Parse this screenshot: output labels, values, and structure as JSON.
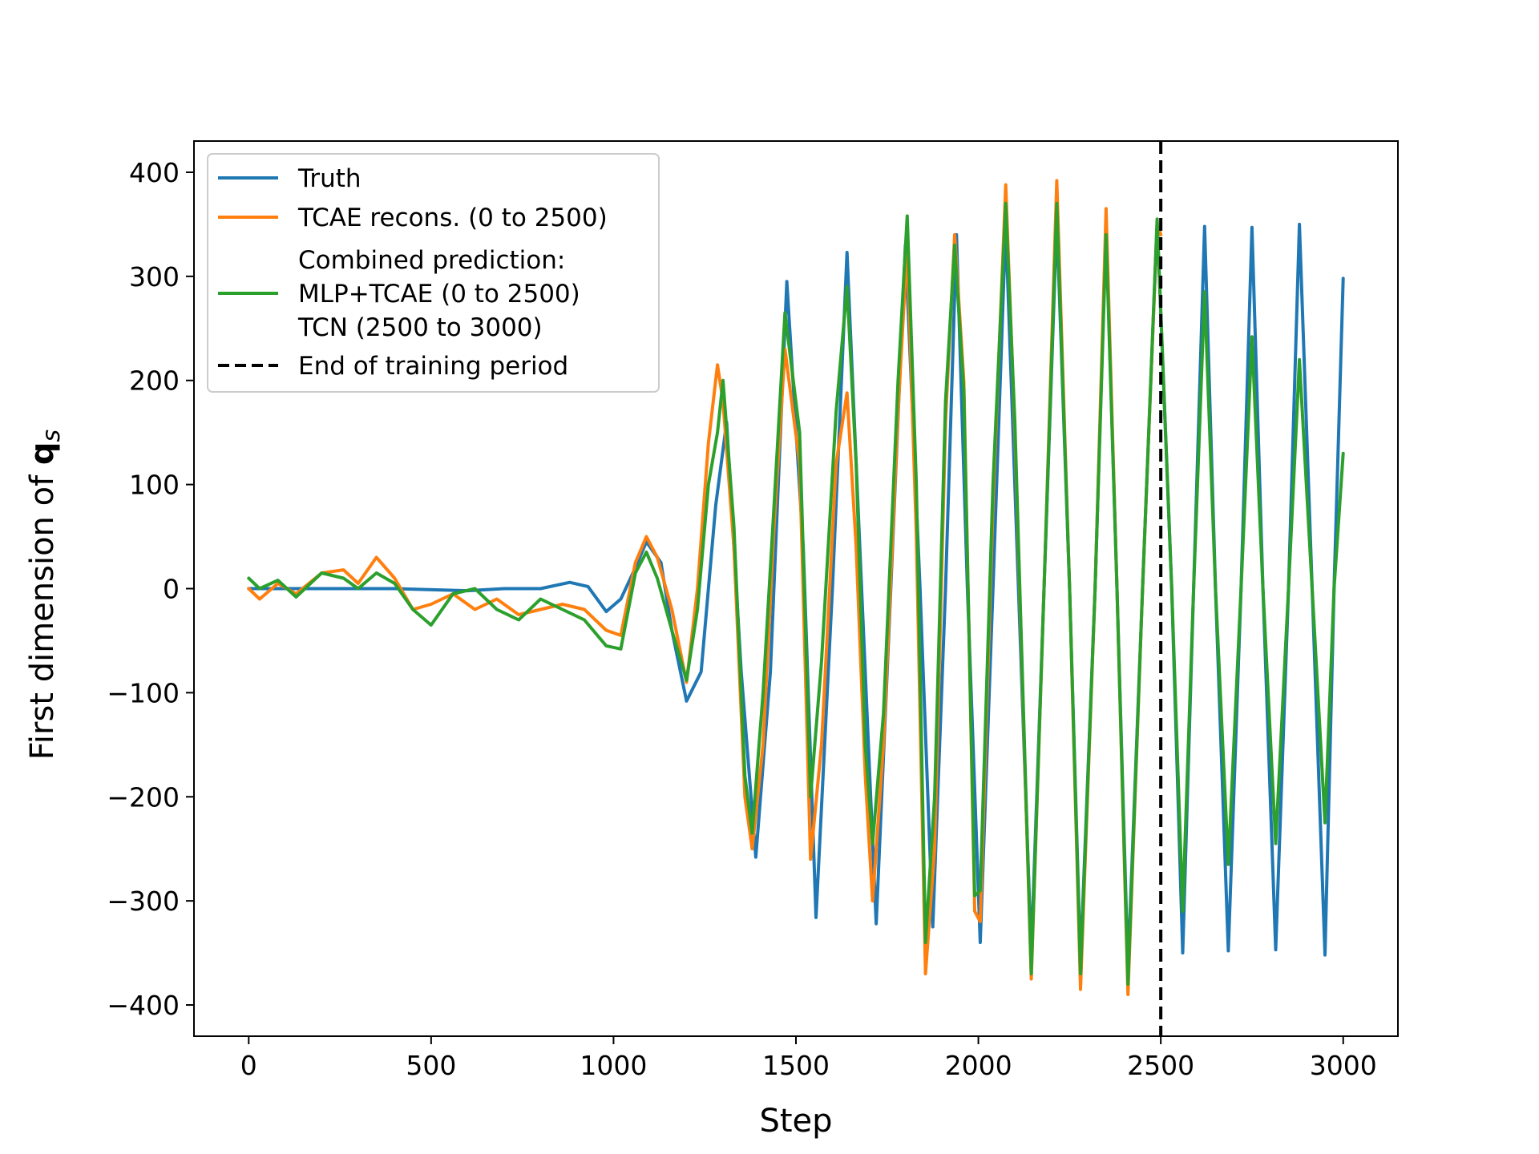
{
  "chart_data": {
    "type": "line",
    "title": "",
    "xlabel": "Step",
    "ylabel_prefix": "First dimension of ",
    "ylabel_symbol": "q",
    "ylabel_subscript": "s",
    "xlim": [
      -150,
      3150
    ],
    "ylim": [
      -430,
      430
    ],
    "xticks": [
      0,
      500,
      1000,
      1500,
      2000,
      2500,
      3000
    ],
    "xtick_labels": [
      "0",
      "500",
      "1000",
      "1500",
      "2000",
      "2500",
      "3000"
    ],
    "yticks": [
      -400,
      -300,
      -200,
      -100,
      0,
      100,
      200,
      300,
      400
    ],
    "ytick_labels": [
      "−400",
      "−300",
      "−200",
      "−100",
      "0",
      "100",
      "200",
      "300",
      "400"
    ],
    "vline": {
      "x": 2500,
      "label": "End of training period",
      "color": "#000000",
      "dashed": true
    },
    "legend": {
      "position": "upper-left",
      "entries": [
        {
          "key": "truth",
          "lines": [
            "Truth"
          ],
          "color": "#1f77b4"
        },
        {
          "key": "tcae",
          "lines": [
            "TCAE recons. (0 to 2500)"
          ],
          "color": "#ff7f0e"
        },
        {
          "key": "combined",
          "lines": [
            "Combined prediction:",
            "MLP+TCAE (0 to 2500)",
            "TCN (2500 to 3000)"
          ],
          "color": "#2ca02c"
        },
        {
          "key": "vline",
          "lines": [
            "End of training period"
          ],
          "color": "#000000",
          "dashed": true
        }
      ]
    },
    "series": [
      {
        "name": "Truth",
        "color": "#1f77b4",
        "points": [
          [
            0,
            0
          ],
          [
            200,
            0
          ],
          [
            400,
            0
          ],
          [
            600,
            -2
          ],
          [
            700,
            0
          ],
          [
            800,
            0
          ],
          [
            880,
            6
          ],
          [
            930,
            2
          ],
          [
            980,
            -22
          ],
          [
            1020,
            -10
          ],
          [
            1060,
            20
          ],
          [
            1090,
            45
          ],
          [
            1130,
            25
          ],
          [
            1160,
            -40
          ],
          [
            1200,
            -108
          ],
          [
            1240,
            -80
          ],
          [
            1280,
            80
          ],
          [
            1310,
            160
          ],
          [
            1350,
            -80
          ],
          [
            1390,
            -258
          ],
          [
            1430,
            -80
          ],
          [
            1475,
            295
          ],
          [
            1520,
            40
          ],
          [
            1555,
            -316
          ],
          [
            1600,
            0
          ],
          [
            1640,
            323
          ],
          [
            1680,
            0
          ],
          [
            1720,
            -322
          ],
          [
            1760,
            0
          ],
          [
            1800,
            330
          ],
          [
            1840,
            0
          ],
          [
            1875,
            -325
          ],
          [
            1910,
            0
          ],
          [
            1940,
            340
          ],
          [
            1970,
            0
          ],
          [
            2005,
            -340
          ],
          [
            2040,
            0
          ],
          [
            2075,
            350
          ],
          [
            2110,
            0
          ],
          [
            2145,
            -350
          ],
          [
            2180,
            0
          ],
          [
            2215,
            355
          ],
          [
            2250,
            0
          ],
          [
            2280,
            -360
          ],
          [
            2320,
            0
          ],
          [
            2350,
            350
          ],
          [
            2380,
            0
          ],
          [
            2410,
            -365
          ],
          [
            2450,
            0
          ],
          [
            2490,
            352
          ],
          [
            2530,
            0
          ],
          [
            2560,
            -350
          ],
          [
            2590,
            0
          ],
          [
            2620,
            348
          ],
          [
            2650,
            0
          ],
          [
            2685,
            -348
          ],
          [
            2720,
            0
          ],
          [
            2750,
            347
          ],
          [
            2780,
            0
          ],
          [
            2815,
            -347
          ],
          [
            2850,
            0
          ],
          [
            2880,
            350
          ],
          [
            2915,
            0
          ],
          [
            2950,
            -352
          ],
          [
            2975,
            0
          ],
          [
            3000,
            298
          ]
        ]
      },
      {
        "name": "TCAE recons. (0 to 2500)",
        "color": "#ff7f0e",
        "points": [
          [
            0,
            0
          ],
          [
            30,
            -10
          ],
          [
            80,
            5
          ],
          [
            130,
            -5
          ],
          [
            200,
            15
          ],
          [
            260,
            18
          ],
          [
            300,
            5
          ],
          [
            350,
            30
          ],
          [
            400,
            10
          ],
          [
            450,
            -20
          ],
          [
            500,
            -15
          ],
          [
            560,
            -5
          ],
          [
            620,
            -20
          ],
          [
            680,
            -10
          ],
          [
            740,
            -25
          ],
          [
            800,
            -20
          ],
          [
            860,
            -15
          ],
          [
            920,
            -20
          ],
          [
            980,
            -40
          ],
          [
            1020,
            -45
          ],
          [
            1060,
            25
          ],
          [
            1090,
            50
          ],
          [
            1120,
            30
          ],
          [
            1160,
            -20
          ],
          [
            1200,
            -90
          ],
          [
            1230,
            0
          ],
          [
            1260,
            140
          ],
          [
            1285,
            215
          ],
          [
            1300,
            180
          ],
          [
            1330,
            40
          ],
          [
            1360,
            -200
          ],
          [
            1380,
            -250
          ],
          [
            1410,
            -150
          ],
          [
            1440,
            60
          ],
          [
            1470,
            230
          ],
          [
            1510,
            120
          ],
          [
            1540,
            -260
          ],
          [
            1570,
            -150
          ],
          [
            1610,
            120
          ],
          [
            1640,
            188
          ],
          [
            1665,
            40
          ],
          [
            1690,
            -180
          ],
          [
            1710,
            -300
          ],
          [
            1740,
            -150
          ],
          [
            1780,
            170
          ],
          [
            1805,
            330
          ],
          [
            1830,
            50
          ],
          [
            1855,
            -370
          ],
          [
            1880,
            -250
          ],
          [
            1910,
            160
          ],
          [
            1935,
            340
          ],
          [
            1960,
            200
          ],
          [
            1990,
            -310
          ],
          [
            2005,
            -320
          ],
          [
            2040,
            80
          ],
          [
            2075,
            388
          ],
          [
            2100,
            150
          ],
          [
            2145,
            -375
          ],
          [
            2180,
            0
          ],
          [
            2215,
            392
          ],
          [
            2250,
            0
          ],
          [
            2280,
            -385
          ],
          [
            2320,
            0
          ],
          [
            2350,
            365
          ],
          [
            2380,
            0
          ],
          [
            2410,
            -390
          ],
          [
            2450,
            0
          ],
          [
            2490,
            350
          ],
          [
            2500,
            340
          ]
        ]
      },
      {
        "name": "Combined prediction",
        "color": "#2ca02c",
        "points": [
          [
            0,
            10
          ],
          [
            30,
            0
          ],
          [
            80,
            8
          ],
          [
            130,
            -8
          ],
          [
            200,
            15
          ],
          [
            260,
            10
          ],
          [
            300,
            0
          ],
          [
            350,
            15
          ],
          [
            400,
            5
          ],
          [
            450,
            -20
          ],
          [
            500,
            -35
          ],
          [
            560,
            -5
          ],
          [
            620,
            0
          ],
          [
            680,
            -20
          ],
          [
            740,
            -30
          ],
          [
            800,
            -10
          ],
          [
            860,
            -20
          ],
          [
            920,
            -30
          ],
          [
            980,
            -55
          ],
          [
            1020,
            -58
          ],
          [
            1060,
            15
          ],
          [
            1090,
            35
          ],
          [
            1120,
            10
          ],
          [
            1160,
            -40
          ],
          [
            1200,
            -88
          ],
          [
            1230,
            -20
          ],
          [
            1260,
            100
          ],
          [
            1285,
            150
          ],
          [
            1300,
            200
          ],
          [
            1330,
            60
          ],
          [
            1360,
            -180
          ],
          [
            1380,
            -235
          ],
          [
            1410,
            -100
          ],
          [
            1440,
            80
          ],
          [
            1470,
            265
          ],
          [
            1510,
            150
          ],
          [
            1540,
            -200
          ],
          [
            1570,
            -70
          ],
          [
            1610,
            170
          ],
          [
            1640,
            290
          ],
          [
            1665,
            120
          ],
          [
            1690,
            -150
          ],
          [
            1710,
            -245
          ],
          [
            1740,
            -120
          ],
          [
            1780,
            200
          ],
          [
            1805,
            358
          ],
          [
            1830,
            100
          ],
          [
            1855,
            -340
          ],
          [
            1880,
            -200
          ],
          [
            1910,
            180
          ],
          [
            1935,
            330
          ],
          [
            1960,
            190
          ],
          [
            1990,
            -295
          ],
          [
            2005,
            -290
          ],
          [
            2040,
            100
          ],
          [
            2075,
            370
          ],
          [
            2100,
            160
          ],
          [
            2145,
            -370
          ],
          [
            2180,
            0
          ],
          [
            2215,
            370
          ],
          [
            2250,
            0
          ],
          [
            2280,
            -370
          ],
          [
            2320,
            0
          ],
          [
            2350,
            340
          ],
          [
            2380,
            0
          ],
          [
            2410,
            -380
          ],
          [
            2450,
            0
          ],
          [
            2490,
            355
          ],
          [
            2530,
            0
          ],
          [
            2560,
            -310
          ],
          [
            2590,
            0
          ],
          [
            2620,
            285
          ],
          [
            2650,
            0
          ],
          [
            2685,
            -265
          ],
          [
            2720,
            0
          ],
          [
            2750,
            242
          ],
          [
            2780,
            0
          ],
          [
            2815,
            -245
          ],
          [
            2850,
            0
          ],
          [
            2880,
            220
          ],
          [
            2915,
            0
          ],
          [
            2950,
            -225
          ],
          [
            2975,
            0
          ],
          [
            3000,
            130
          ]
        ]
      }
    ]
  }
}
